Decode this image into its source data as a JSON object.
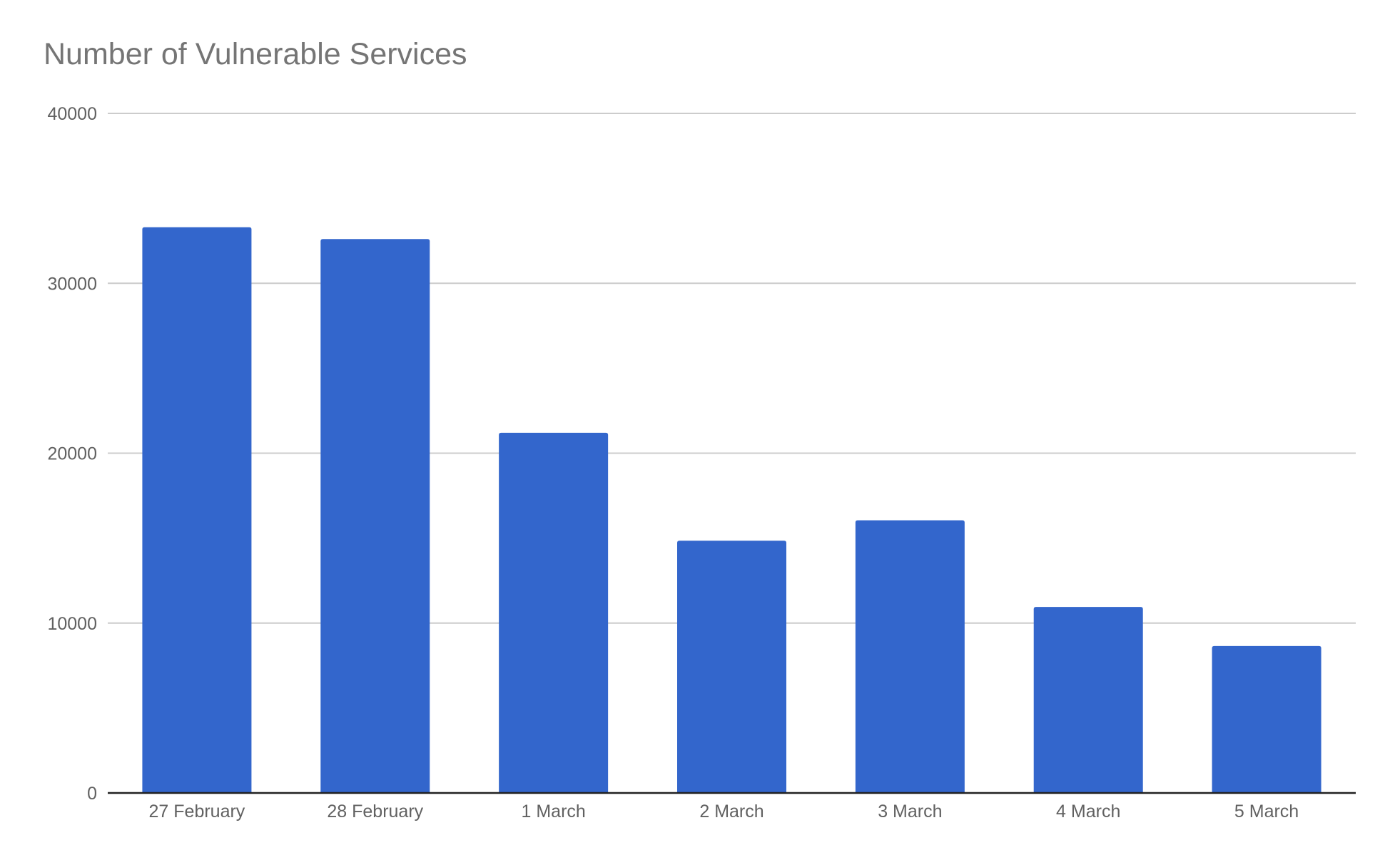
{
  "chart_data": {
    "type": "bar",
    "title": "Number of Vulnerable Services",
    "categories": [
      "27 February",
      "28 February",
      "1 March",
      "2 March",
      "3 March",
      "4 March",
      "5 March"
    ],
    "values": [
      33300,
      32600,
      21200,
      14850,
      16050,
      10950,
      8650
    ],
    "ylim": [
      0,
      40000
    ],
    "yticks": [
      0,
      10000,
      20000,
      30000,
      40000
    ],
    "grid": true,
    "legend": "none",
    "bar_color": "#3366cc"
  }
}
